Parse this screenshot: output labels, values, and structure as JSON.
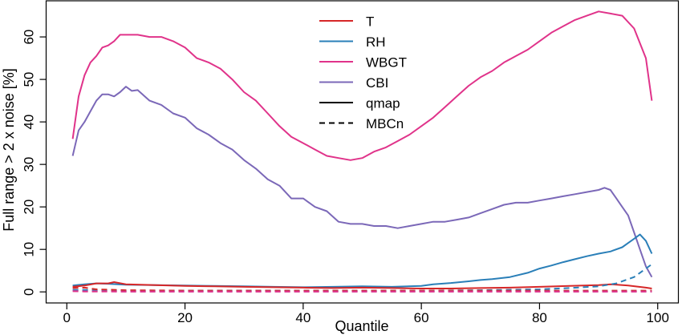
{
  "chart_data": {
    "type": "line",
    "title": "",
    "xlabel": "Quantile",
    "ylabel": "Full range > 2 x noise [%]",
    "xlim": [
      -3.5,
      103.5
    ],
    "ylim": [
      -2.6,
      68.5
    ],
    "xticks": [
      0,
      20,
      40,
      60,
      80,
      100
    ],
    "yticks": [
      0,
      10,
      20,
      30,
      40,
      50,
      60
    ],
    "grid": false,
    "legend": {
      "placement": "top-center",
      "entries": [
        {
          "label": "T",
          "color": "#d62728",
          "dash": "solid"
        },
        {
          "label": "RH",
          "color": "#2a7fb8",
          "dash": "solid"
        },
        {
          "label": "WBGT",
          "color": "#e0338a",
          "dash": "solid"
        },
        {
          "label": "CBI",
          "color": "#7b68b8",
          "dash": "solid"
        },
        {
          "label": "qmap",
          "color": "#000000",
          "dash": "solid"
        },
        {
          "label": "MBCn",
          "color": "#000000",
          "dash": "dashed"
        }
      ]
    },
    "series": [
      {
        "name": "WBGT",
        "method": "qmap",
        "color": "#e0338a",
        "dash": "solid",
        "x": [
          1,
          2,
          3,
          4,
          5,
          6,
          7,
          8,
          9,
          10,
          12,
          14,
          16,
          18,
          20,
          22,
          24,
          26,
          28,
          30,
          32,
          34,
          36,
          38,
          40,
          42,
          44,
          46,
          48,
          50,
          52,
          54,
          56,
          58,
          60,
          62,
          64,
          66,
          68,
          70,
          72,
          74,
          76,
          78,
          80,
          82,
          84,
          86,
          88,
          90,
          92,
          94,
          96,
          98,
          99
        ],
        "y": [
          36,
          46,
          51,
          54,
          55.5,
          57.5,
          58,
          59,
          60.5,
          60.5,
          60.5,
          60,
          60,
          59,
          57.5,
          55,
          54,
          52.5,
          50,
          47,
          45,
          42,
          39,
          36.5,
          35,
          33.5,
          32,
          31.5,
          31,
          31.5,
          33,
          34,
          35.5,
          37,
          39,
          41,
          43.5,
          46,
          48.5,
          50.5,
          52,
          54,
          55.5,
          57,
          59,
          61,
          62.5,
          64,
          65,
          66,
          65.5,
          65,
          62,
          55,
          45
        ]
      },
      {
        "name": "CBI",
        "method": "qmap",
        "color": "#7b68b8",
        "dash": "solid",
        "x": [
          1,
          2,
          3,
          4,
          5,
          6,
          7,
          8,
          9,
          10,
          11,
          12,
          14,
          16,
          18,
          20,
          22,
          24,
          26,
          28,
          30,
          32,
          34,
          36,
          38,
          40,
          42,
          44,
          46,
          48,
          50,
          52,
          54,
          56,
          58,
          60,
          62,
          64,
          66,
          68,
          70,
          72,
          74,
          76,
          78,
          80,
          82,
          84,
          86,
          88,
          90,
          91,
          92,
          93,
          94,
          95,
          96,
          97,
          98,
          99
        ],
        "y": [
          32,
          38,
          40,
          42.5,
          45,
          46.5,
          46.5,
          46,
          47,
          48.3,
          47.3,
          47.5,
          45,
          44,
          42,
          41,
          38.5,
          37,
          35,
          33.5,
          31,
          29,
          26.5,
          25,
          22,
          22,
          20,
          19,
          16.5,
          16,
          16,
          15.5,
          15.5,
          15,
          15.5,
          16,
          16.5,
          16.5,
          17,
          17.5,
          18.5,
          19.5,
          20.5,
          21,
          21,
          21.5,
          22,
          22.5,
          23,
          23.5,
          24,
          24.5,
          24,
          22,
          20,
          18,
          14,
          10,
          6,
          3.5
        ]
      },
      {
        "name": "RH",
        "method": "qmap",
        "color": "#2a7fb8",
        "dash": "solid",
        "x": [
          1,
          3,
          5,
          7,
          10,
          15,
          20,
          25,
          30,
          35,
          40,
          45,
          50,
          55,
          60,
          62,
          65,
          68,
          70,
          72,
          75,
          78,
          80,
          82,
          84,
          86,
          88,
          90,
          92,
          94,
          95,
          96,
          97,
          98,
          99
        ],
        "y": [
          1.5,
          1.8,
          2,
          1.9,
          1.7,
          1.6,
          1.5,
          1.4,
          1.3,
          1.2,
          1.1,
          1.2,
          1.3,
          1.2,
          1.4,
          1.8,
          2.1,
          2.5,
          2.8,
          3,
          3.5,
          4.5,
          5.5,
          6.2,
          7,
          7.7,
          8.4,
          9,
          9.5,
          10.5,
          11.5,
          12.5,
          13.5,
          12,
          9
        ]
      },
      {
        "name": "T",
        "method": "qmap",
        "color": "#d62728",
        "dash": "solid",
        "x": [
          1,
          3,
          5,
          7,
          8,
          10,
          15,
          20,
          25,
          30,
          35,
          40,
          45,
          50,
          55,
          60,
          65,
          70,
          75,
          80,
          85,
          90,
          92,
          95,
          98,
          99
        ],
        "y": [
          1.2,
          1.5,
          2,
          2,
          2.3,
          1.8,
          1.6,
          1.4,
          1.3,
          1.2,
          1.1,
          1,
          0.9,
          1,
          0.9,
          0.8,
          0.8,
          0.9,
          1,
          1.2,
          1.4,
          1.6,
          1.8,
          1.5,
          1,
          0.8
        ]
      },
      {
        "name": "RH",
        "method": "MBCn",
        "color": "#2a7fb8",
        "dash": "dashed",
        "x": [
          1,
          10,
          20,
          40,
          60,
          70,
          80,
          85,
          90,
          93,
          95,
          96,
          97,
          98,
          99
        ],
        "y": [
          0.5,
          0.3,
          0.3,
          0.3,
          0.3,
          0.4,
          0.6,
          0.9,
          1.3,
          2,
          3,
          3.5,
          4.5,
          5.5,
          6.5
        ]
      },
      {
        "name": "T",
        "method": "MBCn",
        "color": "#d62728",
        "dash": "dashed",
        "x": [
          1,
          3,
          5,
          10,
          20,
          40,
          60,
          80,
          90,
          99
        ],
        "y": [
          0.9,
          1,
          0.6,
          0.4,
          0.3,
          0.3,
          0.3,
          0.3,
          0.3,
          0.3
        ]
      },
      {
        "name": "CBI",
        "method": "MBCn",
        "color": "#7b68b8",
        "dash": "dashed",
        "x": [
          1,
          3,
          5,
          10,
          20,
          40,
          60,
          80,
          90,
          99
        ],
        "y": [
          0.3,
          0.2,
          0.2,
          0.1,
          0.1,
          0.1,
          0.1,
          0.1,
          0.1,
          0.1
        ]
      },
      {
        "name": "WBGT",
        "method": "MBCn",
        "color": "#e0338a",
        "dash": "dashed",
        "x": [
          1,
          3,
          5,
          10,
          20,
          40,
          60,
          80,
          90,
          99
        ],
        "y": [
          0.15,
          0.1,
          0.1,
          0.05,
          0.05,
          0.05,
          0.05,
          0.05,
          0.05,
          0.05
        ]
      }
    ]
  }
}
